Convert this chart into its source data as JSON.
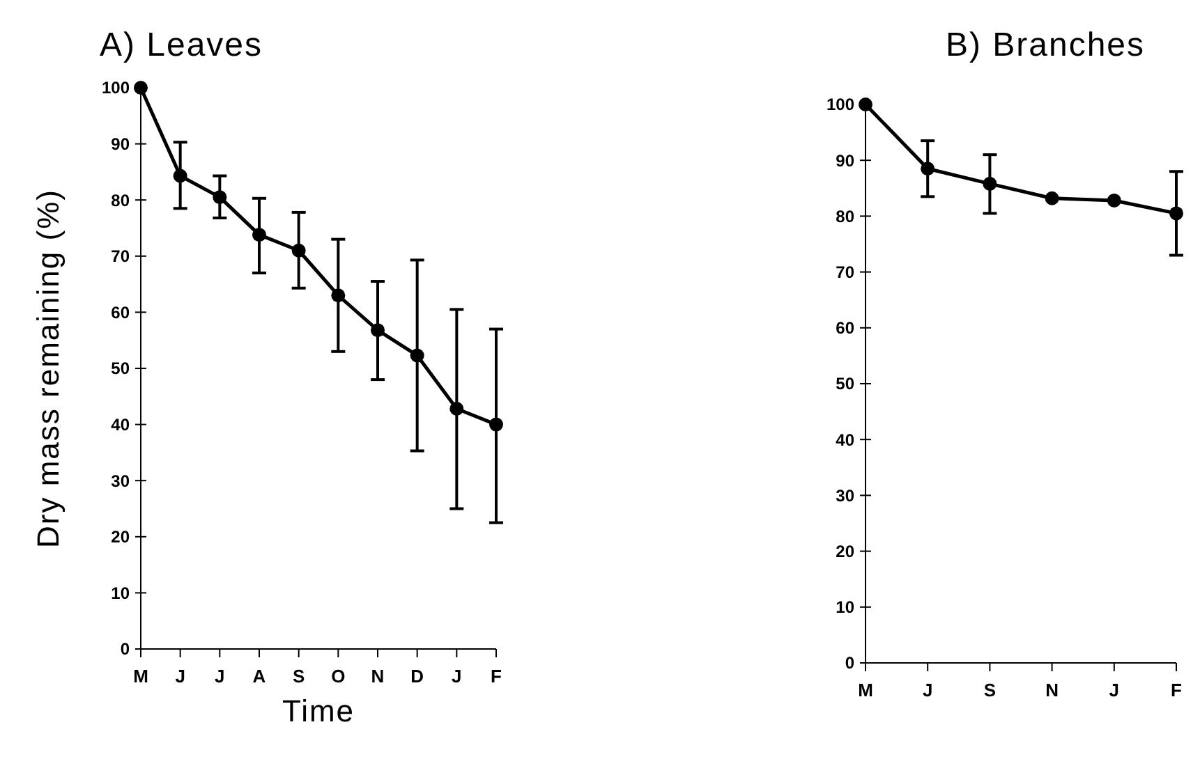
{
  "chart_data": [
    {
      "type": "line",
      "title": "A) Leaves",
      "xlabel": "Time",
      "ylabel": "Dry mass remaining  (%)",
      "categories": [
        "M",
        "J",
        "J",
        "A",
        "S",
        "O",
        "N",
        "D",
        "J",
        "F"
      ],
      "series": [
        {
          "color": "#000000",
          "values": [
            100,
            84.3,
            80.5,
            73.8,
            71,
            63,
            56.8,
            52.3,
            42.8,
            40
          ],
          "errors": [
            null,
            [
              78.5,
              90.3
            ],
            [
              76.8,
              84.3
            ],
            [
              67,
              80.3
            ],
            [
              64.3,
              77.8
            ],
            [
              53,
              73
            ],
            [
              48,
              65.5
            ],
            [
              35.3,
              69.3
            ],
            [
              25,
              60.5
            ],
            [
              22.5,
              57
            ]
          ]
        }
      ],
      "ylim": [
        0,
        100
      ],
      "yticks": [
        0,
        10,
        20,
        30,
        40,
        50,
        60,
        70,
        80,
        90,
        100
      ],
      "marker": "circle"
    },
    {
      "type": "line",
      "title": "B) Branches",
      "categories": [
        "M",
        "J",
        "S",
        "N",
        "J",
        "F"
      ],
      "series": [
        {
          "color": "#000000",
          "values": [
            100,
            88.5,
            85.8,
            83.2,
            82.8,
            80.5
          ],
          "errors": [
            null,
            [
              83.5,
              93.5
            ],
            [
              80.5,
              91
            ],
            null,
            null,
            [
              73,
              88
            ]
          ]
        }
      ],
      "ylim": [
        0,
        100
      ],
      "yticks": [
        0,
        10,
        20,
        30,
        40,
        50,
        60,
        70,
        80,
        90,
        100
      ],
      "marker": "circle"
    }
  ]
}
